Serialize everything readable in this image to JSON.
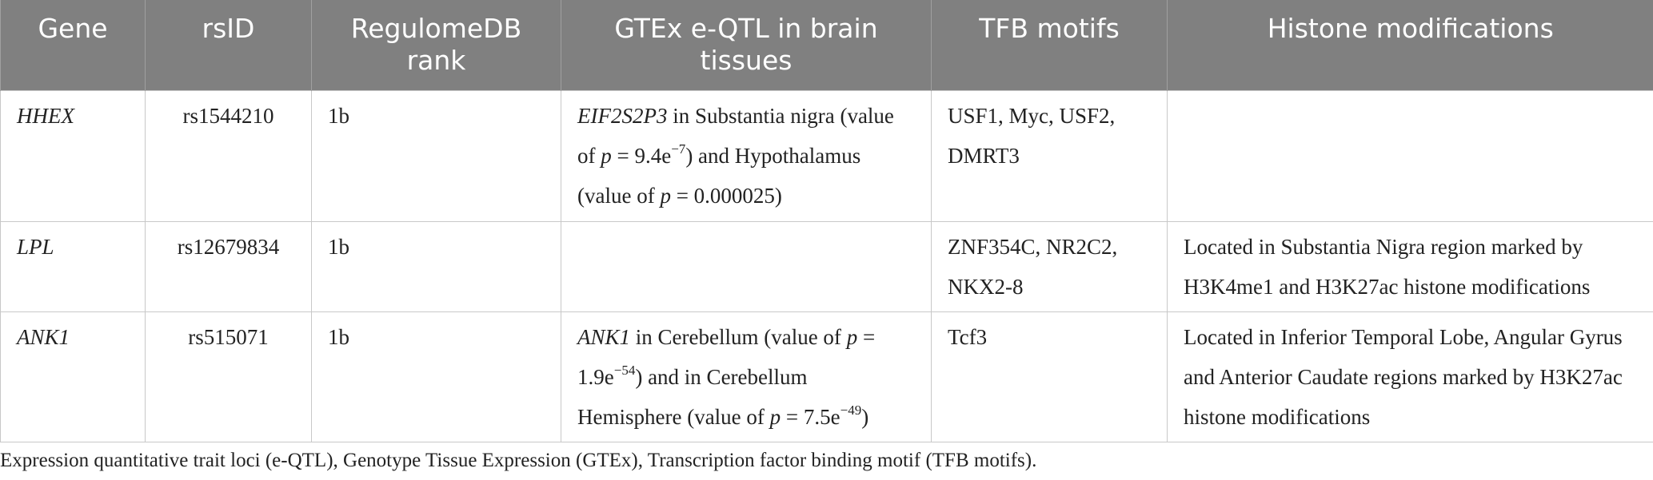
{
  "table": {
    "header": [
      "Gene",
      "rsID",
      "RegulomeDB rank",
      "GTEx e-QTL in brain tissues",
      "TFB motifs",
      "Histone modifications"
    ],
    "rows": [
      [
        [
          {
            "text": "HHEX",
            "format": "italic"
          }
        ],
        [
          "rs1544210"
        ],
        [
          "1b"
        ],
        [
          {
            "text": "EIF2S2P3",
            "format": "italic"
          },
          " in Substantia nigra (value of ",
          {
            "text": "p",
            "format": "italic"
          },
          " = 9.4e",
          {
            "text": "−7",
            "format": "sup"
          },
          ") and Hypothalamus (value of ",
          {
            "text": "p",
            "format": "italic"
          },
          " = 0.000025)"
        ],
        [
          "USF1, Myc, USF2, DMRT3"
        ],
        []
      ],
      [
        [
          {
            "text": "LPL",
            "format": "italic"
          }
        ],
        [
          "rs12679834"
        ],
        [
          "1b"
        ],
        [],
        [
          "ZNF354C, NR2C2, NKX2-8"
        ],
        [
          "Located in Substantia Nigra region marked by H3K4me1 and H3K27ac histone modifications"
        ]
      ],
      [
        [
          {
            "text": "ANK1",
            "format": "italic"
          }
        ],
        [
          "rs515071"
        ],
        [
          "1b"
        ],
        [
          {
            "text": "ANK1",
            "format": "italic"
          },
          " in Cerebellum (value of ",
          {
            "text": "p",
            "format": "italic"
          },
          " = 1.9e",
          {
            "text": "−54",
            "format": "sup"
          },
          ") and in Cerebellum Hemisphere (value of ",
          {
            "text": "p",
            "format": "italic"
          },
          " = 7.5e",
          {
            "text": "−49",
            "format": "sup"
          },
          ")"
        ],
        [
          "Tcf3"
        ],
        [
          "Located in Inferior Temporal Lobe, Angular Gyrus and Anterior Caudate regions marked by H3K27ac histone modifications"
        ]
      ]
    ],
    "footnote": "Expression quantitative trait loci (e-QTL), Genotype Tissue Expression (GTEx), Transcription factor binding motif (TFB motifs)."
  }
}
